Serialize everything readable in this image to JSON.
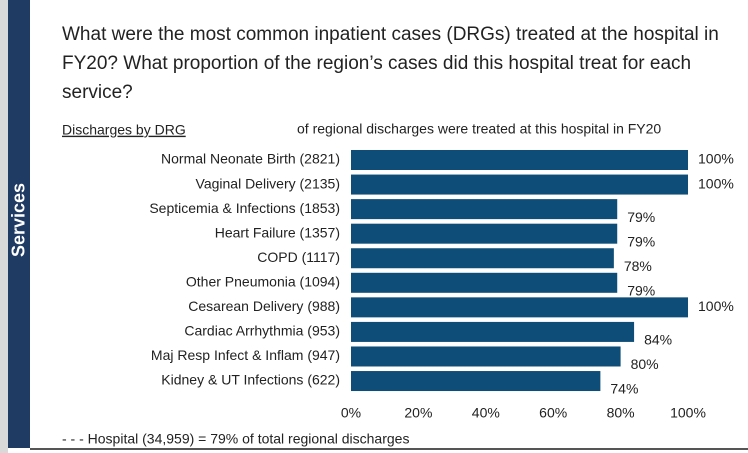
{
  "sidebar": "Services",
  "question": "What were the most common inpatient cases (DRGs) treated at the hospital in FY20? What proportion of the region’s cases did this hospital treat for each service?",
  "chart_data": {
    "type": "bar",
    "orientation": "horizontal",
    "title": "Discharges by DRG",
    "subtitle": "of regional discharges were treated at this hospital in FY20",
    "categories": [
      "Normal Neonate Birth (2821)",
      "Vaginal Delivery (2135)",
      "Septicemia & Infections (1853)",
      "Heart Failure (1357)",
      "COPD (1117)",
      "Other Pneumonia (1094)",
      "Cesarean Delivery (988)",
      "Cardiac Arrhythmia  (953)",
      "Maj Resp Infect & Inflam (947)",
      "Kidney & UT Infections (622)"
    ],
    "values": [
      100,
      100,
      79,
      79,
      78,
      79,
      100,
      84,
      80,
      74
    ],
    "value_labels": [
      "100%",
      "100%",
      "79%",
      "79%",
      "78%",
      "79%",
      "100%",
      "84%",
      "80%",
      "74%"
    ],
    "color": "#0e4d77",
    "xlim": [
      0,
      100
    ],
    "xticks": [
      {
        "value": 0,
        "label": "0%"
      },
      {
        "value": 20,
        "label": "20%"
      },
      {
        "value": 40,
        "label": "40%"
      },
      {
        "value": 60,
        "label": "60%"
      },
      {
        "value": 80,
        "label": "80%"
      },
      {
        "value": 100,
        "label": "100%"
      }
    ],
    "footnote": "- - -  Hospital  (34,959) = 79%  of total regional discharges"
  }
}
